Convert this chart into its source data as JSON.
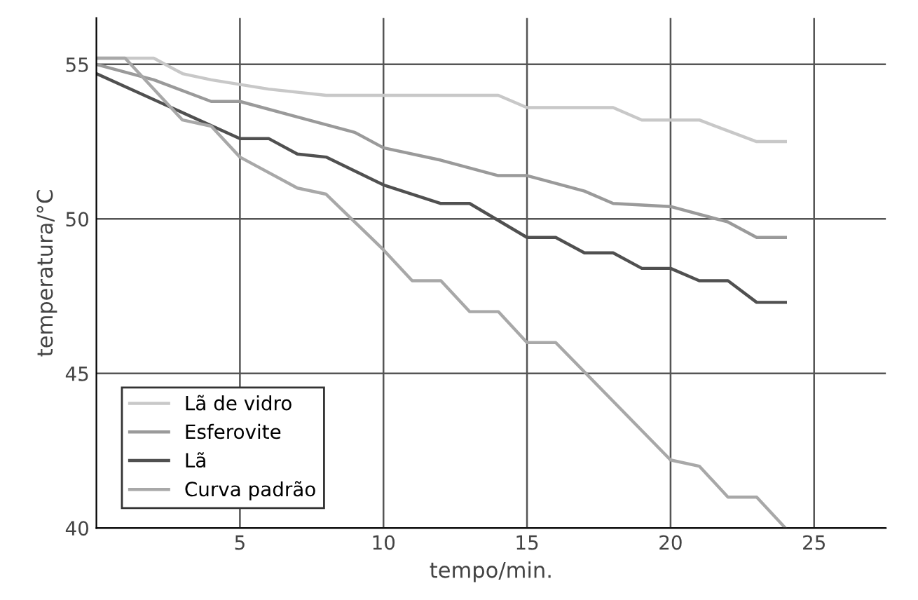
{
  "chart_data": {
    "type": "line",
    "xlabel": "tempo/min.",
    "ylabel": "temperatura/°C",
    "xlim": [
      0,
      27.5
    ],
    "ylim": [
      40,
      56.5
    ],
    "xticks": [
      5,
      10,
      15,
      20,
      25
    ],
    "yticks": [
      40,
      45,
      50,
      55
    ],
    "grid": true,
    "legend": "bottom left",
    "line_style": "solid",
    "series": [
      {
        "name": "Lã de vidro",
        "color": "#c8c8c8",
        "x": [
          0,
          2,
          3,
          4,
          6,
          8,
          14,
          15,
          18,
          19,
          21,
          23,
          24
        ],
        "values": [
          55.2,
          55.2,
          54.7,
          54.5,
          54.2,
          54.0,
          54.0,
          53.6,
          53.6,
          53.2,
          53.2,
          52.5,
          52.5
        ]
      },
      {
        "name": "Esferovite",
        "color": "#9a9a9a",
        "x": [
          0,
          2,
          4,
          5,
          7,
          9,
          10,
          12,
          14,
          15,
          17,
          18,
          20,
          22,
          23,
          24
        ],
        "values": [
          55.0,
          54.5,
          53.8,
          53.8,
          53.3,
          52.8,
          52.3,
          51.9,
          51.4,
          51.4,
          50.9,
          50.5,
          50.4,
          49.9,
          49.4,
          49.4
        ]
      },
      {
        "name": "Lã",
        "color": "#505050",
        "x": [
          0,
          5,
          6,
          7,
          8,
          10,
          12,
          13,
          15,
          16,
          17,
          18,
          19,
          20,
          21,
          22,
          23,
          24
        ],
        "values": [
          54.7,
          52.6,
          52.6,
          52.1,
          52.0,
          51.1,
          50.5,
          50.5,
          49.4,
          49.4,
          48.9,
          48.9,
          48.4,
          48.4,
          48.0,
          48.0,
          47.3,
          47.3
        ]
      },
      {
        "name": "Curva padrão",
        "color": "#a8a8a8",
        "x": [
          0,
          1,
          3,
          4,
          5,
          7,
          8,
          10,
          11,
          12,
          13,
          14,
          15,
          16,
          20,
          21,
          22,
          23,
          24
        ],
        "values": [
          55.2,
          55.2,
          53.2,
          53.0,
          52.0,
          51.0,
          50.8,
          49.0,
          48.0,
          48.0,
          47.0,
          47.0,
          46.0,
          46.0,
          42.2,
          42.0,
          41.0,
          41.0,
          40.0
        ]
      }
    ]
  }
}
